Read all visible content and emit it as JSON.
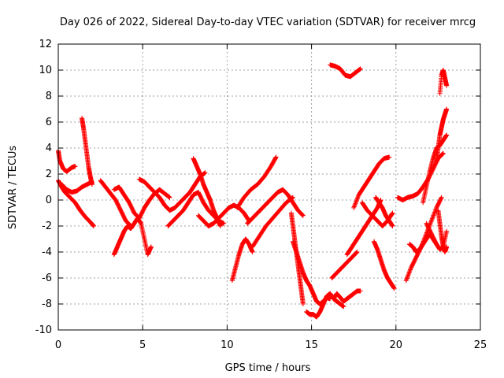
{
  "chart_data": {
    "type": "scatter",
    "title": "Day 026 of 2022, Sidereal Day-to-day VTEC variation (SDTVAR) for receiver mrcg",
    "xlabel": "GPS time / hours",
    "ylabel": "SDTVAR / TECUs",
    "xlim": [
      0,
      25
    ],
    "ylim": [
      -10,
      12
    ],
    "xticks": [
      "0",
      "5",
      "10",
      "15",
      "20",
      "25"
    ],
    "yticks": [
      "-10",
      "-8",
      "-6",
      "-4",
      "-2",
      "0",
      "2",
      "4",
      "6",
      "8",
      "10",
      "12"
    ],
    "grid": true,
    "marker": "+",
    "color": "#ff0000",
    "series": [
      {
        "name": "s1",
        "x": [
          0.0,
          0.2,
          0.4,
          0.7,
          1.0,
          1.3,
          1.6,
          1.9,
          2.1
        ],
        "y": [
          1.5,
          1.0,
          0.6,
          0.2,
          -0.2,
          -0.8,
          -1.3,
          -1.7,
          -2.0
        ]
      },
      {
        "name": "s2",
        "x": [
          0.0,
          0.1,
          0.3,
          0.5,
          0.8,
          1.0
        ],
        "y": [
          3.8,
          3.0,
          2.4,
          2.2,
          2.5,
          2.6
        ]
      },
      {
        "name": "s3",
        "x": [
          0.2,
          0.5,
          0.8,
          1.1,
          1.4,
          1.7,
          2.0
        ],
        "y": [
          1.2,
          0.8,
          0.6,
          0.7,
          1.0,
          1.2,
          1.4
        ]
      },
      {
        "name": "s4",
        "x": [
          1.4,
          1.5,
          1.6,
          1.7,
          1.8,
          1.9,
          2.0
        ],
        "y": [
          6.3,
          5.5,
          4.5,
          3.5,
          2.5,
          1.8,
          1.2
        ]
      },
      {
        "name": "s5",
        "x": [
          2.5,
          2.8,
          3.1,
          3.4,
          3.7,
          4.0,
          4.3
        ],
        "y": [
          1.5,
          1.0,
          0.5,
          0.0,
          -0.8,
          -1.6,
          -2.0
        ]
      },
      {
        "name": "s6",
        "x": [
          3.3,
          3.5,
          3.7,
          3.9,
          4.1,
          4.3,
          4.5,
          4.7,
          4.9,
          5.1,
          5.3,
          5.5
        ],
        "y": [
          -4.2,
          -3.6,
          -3.0,
          -2.4,
          -2.0,
          -2.2,
          -1.8,
          -1.4,
          -1.8,
          -3.0,
          -4.2,
          -3.6
        ]
      },
      {
        "name": "s7",
        "x": [
          3.3,
          3.6,
          3.9,
          4.2,
          4.5,
          4.8,
          5.1,
          5.4,
          5.7,
          6.0,
          6.3,
          6.6
        ],
        "y": [
          0.8,
          1.0,
          0.4,
          -0.2,
          -1.0,
          -1.4,
          -0.6,
          0.0,
          0.5,
          0.8,
          0.5,
          0.2
        ]
      },
      {
        "name": "s8",
        "x": [
          4.8,
          5.1,
          5.4,
          5.7,
          6.0,
          6.3,
          6.6,
          6.9,
          7.2,
          7.5,
          7.8,
          8.1,
          8.4,
          8.7
        ],
        "y": [
          1.6,
          1.4,
          1.0,
          0.6,
          0.2,
          -0.4,
          -0.8,
          -0.6,
          -0.2,
          0.2,
          0.6,
          1.2,
          1.8,
          2.1
        ]
      },
      {
        "name": "s9",
        "x": [
          6.5,
          6.8,
          7.1,
          7.4,
          7.7,
          8.0,
          8.3,
          8.6,
          8.9,
          9.2,
          9.5,
          9.8
        ],
        "y": [
          -2.0,
          -1.6,
          -1.2,
          -0.8,
          -0.2,
          0.4,
          0.6,
          -0.2,
          -0.8,
          -1.2,
          -1.6,
          -1.8
        ]
      },
      {
        "name": "s10",
        "x": [
          8.0,
          8.2,
          8.4,
          8.6,
          8.8,
          9.0,
          9.2,
          9.4,
          9.6
        ],
        "y": [
          3.2,
          2.6,
          2.0,
          1.2,
          0.6,
          0.0,
          -0.8,
          -1.4,
          -2.0
        ]
      },
      {
        "name": "s11",
        "x": [
          8.3,
          8.6,
          8.9,
          9.2,
          9.5,
          9.8,
          10.1,
          10.4,
          10.7,
          11.0,
          11.3
        ],
        "y": [
          -1.2,
          -1.6,
          -2.0,
          -1.8,
          -1.4,
          -1.0,
          -0.6,
          -0.4,
          -0.6,
          -1.0,
          -1.6
        ]
      },
      {
        "name": "s12",
        "x": [
          10.3,
          10.5,
          10.7,
          10.9,
          11.1,
          11.3,
          11.5
        ],
        "y": [
          -6.2,
          -5.2,
          -4.2,
          -3.4,
          -3.0,
          -3.4,
          -4.0
        ]
      },
      {
        "name": "s13",
        "x": [
          10.6,
          11.0,
          11.4,
          11.8,
          12.2,
          12.6,
          12.9
        ],
        "y": [
          -0.6,
          0.2,
          0.8,
          1.2,
          1.8,
          2.6,
          3.3
        ]
      },
      {
        "name": "s14",
        "x": [
          11.5,
          11.9,
          12.3,
          12.7,
          13.1,
          13.5,
          13.9
        ],
        "y": [
          -3.6,
          -2.8,
          -2.0,
          -1.4,
          -0.8,
          -0.2,
          0.2
        ]
      },
      {
        "name": "s15",
        "x": [
          11.2,
          11.5,
          11.8,
          12.1,
          12.4,
          12.7,
          13.0,
          13.3,
          13.6,
          13.9,
          14.2,
          14.5
        ],
        "y": [
          -1.8,
          -1.4,
          -1.0,
          -0.6,
          -0.2,
          0.2,
          0.6,
          0.8,
          0.4,
          -0.2,
          -0.8,
          -1.2
        ]
      },
      {
        "name": "s16",
        "x": [
          13.8,
          13.9,
          14.0,
          14.1,
          14.2,
          14.3,
          14.4,
          14.5
        ],
        "y": [
          -1.0,
          -2.0,
          -3.0,
          -4.0,
          -5.0,
          -6.0,
          -7.0,
          -8.0
        ]
      },
      {
        "name": "s17",
        "x": [
          13.9,
          14.1,
          14.3,
          14.5,
          14.7,
          14.9,
          15.1,
          15.3,
          15.5,
          15.7,
          15.9,
          16.1
        ],
        "y": [
          -3.2,
          -4.0,
          -4.8,
          -5.6,
          -6.2,
          -6.6,
          -7.2,
          -7.8,
          -8.0,
          -7.8,
          -7.5,
          -7.6
        ]
      },
      {
        "name": "s18",
        "x": [
          14.7,
          14.9,
          15.1,
          15.3,
          15.5,
          15.7,
          15.9,
          16.1,
          16.3,
          16.5,
          16.7,
          16.9
        ],
        "y": [
          -8.6,
          -8.8,
          -8.8,
          -9.0,
          -8.6,
          -8.0,
          -7.4,
          -7.2,
          -7.6,
          -7.8,
          -8.0,
          -8.2
        ]
      },
      {
        "name": "s19",
        "x": [
          16.3,
          16.5,
          16.7,
          16.9,
          17.1,
          17.3,
          17.5,
          17.7,
          17.9
        ],
        "y": [
          -7.6,
          -7.2,
          -7.5,
          -7.8,
          -7.6,
          -7.4,
          -7.2,
          -7.0,
          -7.0
        ]
      },
      {
        "name": "s20",
        "x": [
          16.2,
          16.5,
          16.8,
          17.1,
          17.4,
          17.7
        ],
        "y": [
          -6.0,
          -5.6,
          -5.2,
          -4.8,
          -4.4,
          -4.0
        ]
      },
      {
        "name": "s21",
        "x": [
          16.1,
          16.4,
          16.7,
          17.0,
          17.3,
          17.6,
          17.9
        ],
        "y": [
          10.4,
          10.3,
          10.1,
          9.6,
          9.5,
          9.8,
          10.1
        ]
      },
      {
        "name": "s22",
        "x": [
          17.1,
          17.4,
          17.7,
          18.0,
          18.3,
          18.6,
          18.9,
          19.1
        ],
        "y": [
          -4.2,
          -3.6,
          -3.0,
          -2.4,
          -1.8,
          -1.2,
          -0.6,
          0.0
        ]
      },
      {
        "name": "s23",
        "x": [
          17.5,
          17.8,
          18.1,
          18.4,
          18.7,
          19.0,
          19.3,
          19.6
        ],
        "y": [
          -0.6,
          0.4,
          1.0,
          1.6,
          2.2,
          2.8,
          3.2,
          3.3
        ]
      },
      {
        "name": "s24",
        "x": [
          18.0,
          18.3,
          18.6,
          18.9,
          19.2,
          19.5,
          19.8
        ],
        "y": [
          -0.2,
          -0.8,
          -1.2,
          -1.6,
          -2.0,
          -1.6,
          -1.0
        ]
      },
      {
        "name": "s25",
        "x": [
          18.7,
          18.9,
          19.1,
          19.3,
          19.5,
          19.7,
          19.9
        ],
        "y": [
          -3.2,
          -3.8,
          -4.6,
          -5.4,
          -6.0,
          -6.4,
          -6.8
        ]
      },
      {
        "name": "s26",
        "x": [
          18.8,
          19.0,
          19.2,
          19.4,
          19.6,
          19.8
        ],
        "y": [
          0.2,
          -0.2,
          -0.6,
          -1.2,
          -1.6,
          -2.0
        ]
      },
      {
        "name": "s27",
        "x": [
          20.1,
          20.4,
          20.7,
          21.0,
          21.3,
          21.6,
          21.9,
          22.2,
          22.5,
          22.8
        ],
        "y": [
          0.2,
          0.0,
          0.2,
          0.3,
          0.5,
          1.0,
          1.6,
          2.4,
          3.2,
          3.6
        ]
      },
      {
        "name": "s28",
        "x": [
          20.6,
          20.9,
          21.2,
          21.5,
          21.8,
          22.1,
          22.4,
          22.7
        ],
        "y": [
          -6.2,
          -5.2,
          -4.4,
          -3.6,
          -2.6,
          -1.6,
          -0.6,
          0.2
        ]
      },
      {
        "name": "s29",
        "x": [
          20.8,
          21.0,
          21.2,
          21.4,
          21.6,
          21.8,
          22.0,
          22.2,
          22.4
        ],
        "y": [
          -3.4,
          -3.6,
          -4.0,
          -3.8,
          -3.4,
          -3.0,
          -2.6,
          -3.0,
          -3.4
        ]
      },
      {
        "name": "s30",
        "x": [
          21.6,
          21.8,
          22.0,
          22.2,
          22.4,
          22.6,
          22.8,
          23.0
        ],
        "y": [
          -0.2,
          1.0,
          2.2,
          3.2,
          4.0,
          4.2,
          4.6,
          5.0
        ]
      },
      {
        "name": "s31",
        "x": [
          21.8,
          22.1,
          22.4,
          22.6,
          22.8,
          23.0
        ],
        "y": [
          -1.8,
          -2.6,
          -3.4,
          -3.8,
          -3.6,
          -2.4
        ]
      },
      {
        "name": "s32",
        "x": [
          22.4,
          22.5,
          22.6,
          22.7,
          22.8,
          22.9,
          23.0
        ],
        "y": [
          3.0,
          4.0,
          5.0,
          5.6,
          6.2,
          6.6,
          7.0
        ]
      },
      {
        "name": "s33",
        "x": [
          22.6,
          22.7,
          22.8,
          22.9,
          23.0
        ],
        "y": [
          8.2,
          9.6,
          10.0,
          9.4,
          8.8
        ]
      },
      {
        "name": "s34",
        "x": [
          22.5,
          22.6,
          22.7,
          22.8,
          22.9,
          23.0
        ],
        "y": [
          -0.8,
          -1.8,
          -2.8,
          -3.6,
          -4.0,
          -3.6
        ]
      }
    ]
  }
}
